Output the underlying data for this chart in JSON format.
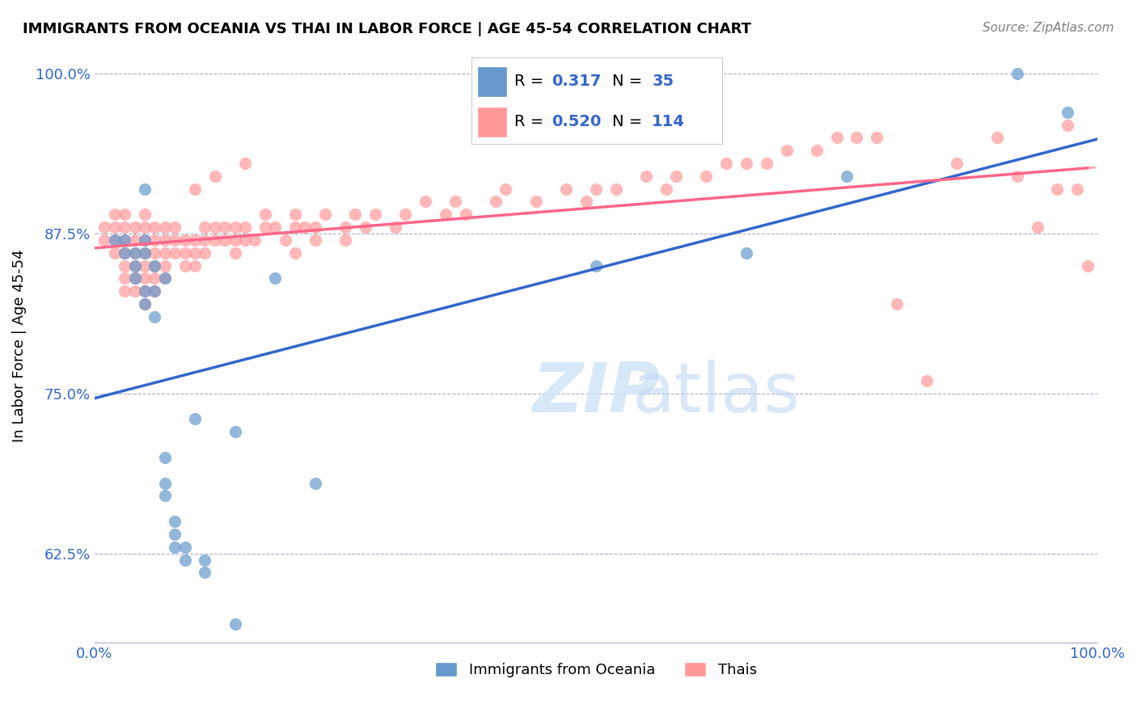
{
  "title": "IMMIGRANTS FROM OCEANIA VS THAI IN LABOR FORCE | AGE 45-54 CORRELATION CHART",
  "source": "Source: ZipAtlas.com",
  "xlabel": "",
  "ylabel": "In Labor Force | Age 45-54",
  "xlim": [
    0.0,
    1.0
  ],
  "ylim": [
    0.555,
    1.02
  ],
  "xticks": [
    0.0,
    0.1,
    0.2,
    0.3,
    0.4,
    0.5,
    0.6,
    0.7,
    0.8,
    0.9,
    1.0
  ],
  "xticklabels": [
    "0.0%",
    "",
    "",
    "",
    "",
    "",
    "",
    "",
    "",
    "",
    "100.0%"
  ],
  "yticks": [
    0.625,
    0.75,
    0.875,
    1.0
  ],
  "yticklabels": [
    "62.5%",
    "75.0%",
    "87.5%",
    "100.0%"
  ],
  "legend_label1": "Immigrants from Oceania",
  "legend_label2": "Thais",
  "R1": 0.317,
  "N1": 35,
  "R2": 0.52,
  "N2": 114,
  "color_blue": "#6699CC",
  "color_pink": "#FF9999",
  "color_blue_line": "#3366CC",
  "color_pink_line": "#FF6688",
  "watermark": "ZIPatlas",
  "blue_points_x": [
    0.02,
    0.03,
    0.03,
    0.04,
    0.04,
    0.04,
    0.05,
    0.05,
    0.05,
    0.05,
    0.05,
    0.06,
    0.06,
    0.06,
    0.07,
    0.07,
    0.07,
    0.07,
    0.08,
    0.08,
    0.08,
    0.09,
    0.09,
    0.1,
    0.11,
    0.11,
    0.14,
    0.14,
    0.18,
    0.22,
    0.5,
    0.65,
    0.75,
    0.92,
    0.97
  ],
  "blue_points_y": [
    0.87,
    0.86,
    0.87,
    0.84,
    0.85,
    0.86,
    0.82,
    0.83,
    0.86,
    0.87,
    0.91,
    0.81,
    0.83,
    0.85,
    0.67,
    0.68,
    0.7,
    0.84,
    0.63,
    0.64,
    0.65,
    0.62,
    0.63,
    0.73,
    0.61,
    0.62,
    0.72,
    0.57,
    0.84,
    0.68,
    0.85,
    0.86,
    0.92,
    1.0,
    0.97
  ],
  "pink_points_x": [
    0.01,
    0.01,
    0.02,
    0.02,
    0.02,
    0.02,
    0.03,
    0.03,
    0.03,
    0.03,
    0.03,
    0.03,
    0.03,
    0.04,
    0.04,
    0.04,
    0.04,
    0.04,
    0.04,
    0.05,
    0.05,
    0.05,
    0.05,
    0.05,
    0.05,
    0.05,
    0.05,
    0.06,
    0.06,
    0.06,
    0.06,
    0.06,
    0.06,
    0.07,
    0.07,
    0.07,
    0.07,
    0.07,
    0.08,
    0.08,
    0.08,
    0.09,
    0.09,
    0.09,
    0.1,
    0.1,
    0.1,
    0.11,
    0.11,
    0.11,
    0.12,
    0.12,
    0.13,
    0.13,
    0.14,
    0.14,
    0.14,
    0.15,
    0.15,
    0.16,
    0.17,
    0.17,
    0.18,
    0.19,
    0.2,
    0.2,
    0.21,
    0.22,
    0.22,
    0.23,
    0.25,
    0.25,
    0.26,
    0.27,
    0.28,
    0.3,
    0.31,
    0.33,
    0.35,
    0.36,
    0.37,
    0.4,
    0.41,
    0.44,
    0.47,
    0.49,
    0.5,
    0.52,
    0.55,
    0.57,
    0.58,
    0.61,
    0.63,
    0.65,
    0.67,
    0.69,
    0.72,
    0.74,
    0.76,
    0.78,
    0.8,
    0.83,
    0.86,
    0.9,
    0.92,
    0.94,
    0.96,
    0.97,
    0.98,
    0.99,
    0.1,
    0.12,
    0.15,
    0.2
  ],
  "pink_points_y": [
    0.87,
    0.88,
    0.86,
    0.87,
    0.88,
    0.89,
    0.83,
    0.84,
    0.85,
    0.86,
    0.87,
    0.88,
    0.89,
    0.83,
    0.84,
    0.85,
    0.86,
    0.87,
    0.88,
    0.82,
    0.83,
    0.84,
    0.85,
    0.86,
    0.87,
    0.88,
    0.89,
    0.83,
    0.84,
    0.85,
    0.86,
    0.87,
    0.88,
    0.84,
    0.85,
    0.86,
    0.87,
    0.88,
    0.86,
    0.87,
    0.88,
    0.85,
    0.86,
    0.87,
    0.85,
    0.86,
    0.87,
    0.86,
    0.87,
    0.88,
    0.87,
    0.88,
    0.87,
    0.88,
    0.86,
    0.87,
    0.88,
    0.87,
    0.88,
    0.87,
    0.88,
    0.89,
    0.88,
    0.87,
    0.88,
    0.89,
    0.88,
    0.87,
    0.88,
    0.89,
    0.87,
    0.88,
    0.89,
    0.88,
    0.89,
    0.88,
    0.89,
    0.9,
    0.89,
    0.9,
    0.89,
    0.9,
    0.91,
    0.9,
    0.91,
    0.9,
    0.91,
    0.91,
    0.92,
    0.91,
    0.92,
    0.92,
    0.93,
    0.93,
    0.93,
    0.94,
    0.94,
    0.95,
    0.95,
    0.95,
    0.82,
    0.76,
    0.93,
    0.95,
    0.92,
    0.88,
    0.91,
    0.96,
    0.91,
    0.85,
    0.91,
    0.92,
    0.93,
    0.86
  ]
}
